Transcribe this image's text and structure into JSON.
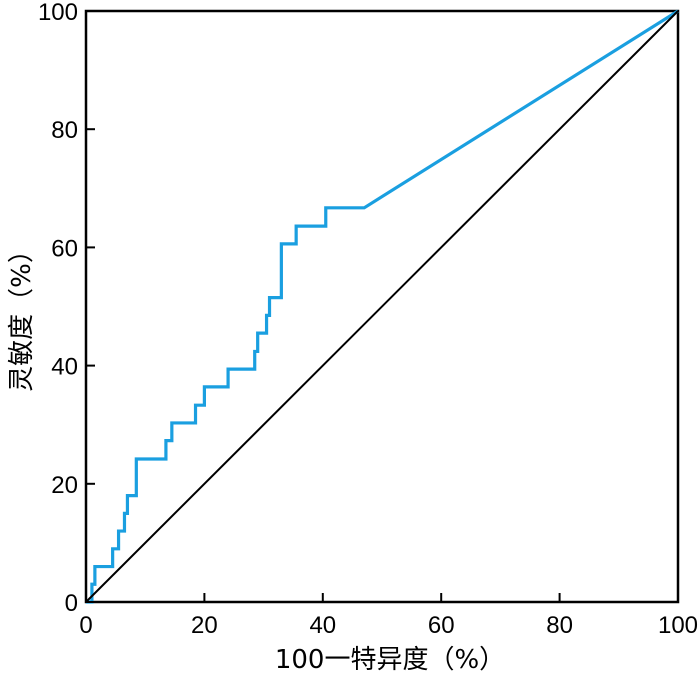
{
  "chart_data": {
    "type": "line",
    "xlabel": "100一特异度（%）",
    "ylabel": "灵敏度（%）",
    "xlim": [
      0,
      100
    ],
    "ylim": [
      0,
      100
    ],
    "xticks": [
      0,
      20,
      40,
      60,
      80,
      100
    ],
    "yticks": [
      0,
      20,
      40,
      60,
      80,
      100
    ],
    "grid": false,
    "series": [
      {
        "color": "#1a9fe0",
        "x": [
          0,
          1.0,
          1.0,
          1.5,
          1.5,
          4.5,
          4.5,
          5.5,
          5.5,
          6.5,
          6.5,
          7.0,
          7.0,
          8.5,
          8.5,
          13.5,
          13.5,
          14.5,
          14.5,
          18.5,
          18.5,
          20.0,
          20.0,
          24.0,
          24.0,
          28.5,
          28.5,
          29.0,
          29.0,
          30.5,
          30.5,
          31.0,
          31.0,
          33.0,
          33.0,
          35.5,
          35.5,
          40.5,
          40.5,
          47.0,
          100
        ],
        "y": [
          0,
          0,
          3,
          3,
          6,
          6,
          9,
          9,
          12,
          12,
          15,
          15,
          18,
          18,
          24.2,
          24.2,
          27.3,
          27.3,
          30.3,
          30.3,
          33.3,
          33.3,
          36.4,
          36.4,
          39.4,
          39.4,
          42.4,
          42.4,
          45.5,
          45.5,
          48.5,
          48.5,
          51.5,
          51.5,
          60.6,
          60.6,
          63.6,
          63.6,
          66.7,
          66.7,
          100
        ]
      },
      {
        "color": "#000000",
        "x": [
          0,
          100
        ],
        "y": [
          0,
          100
        ]
      }
    ]
  }
}
